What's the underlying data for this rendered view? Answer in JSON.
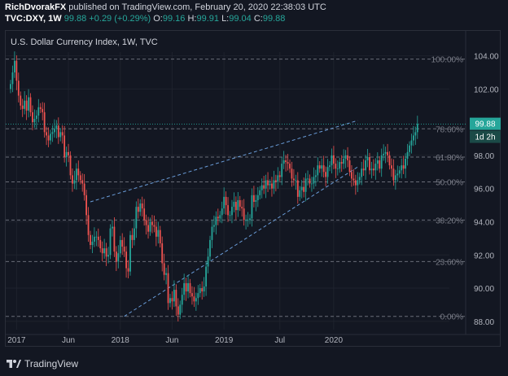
{
  "header": {
    "author": "RichDvorakFX",
    "published_text": "published on TradingView.com, February 20, 2020 22:38:03 UTC",
    "symbol": "TVC:DXY, 1W",
    "last": "99.88",
    "change": "+0.29 (+0.29%)",
    "o_label": "O:",
    "o_value": "99.16",
    "h_label": "H:",
    "h_value": "99.91",
    "l_label": "L:",
    "l_value": "99.04",
    "c_label": "C:",
    "c_value": "99.88"
  },
  "footer": {
    "brand": "TradingView"
  },
  "colors": {
    "up": "#26a69a",
    "down": "#ef5350",
    "fib": "#6a6d78",
    "channel": "#6a9cd8",
    "bg": "#131722"
  },
  "chart_data": {
    "type": "candlestick",
    "title": "U.S. Dollar Currency Index, 1W, TVC",
    "x_ticks": [
      "2017",
      "Jun",
      "2018",
      "Jun",
      "2019",
      "Jul",
      "2020"
    ],
    "y_ticks": [
      "104.00",
      "102.00",
      "98.00",
      "96.00",
      "94.00",
      "92.00",
      "90.00",
      "88.00"
    ],
    "ylim": [
      87.5,
      105.5
    ],
    "last_price_label": "99.88",
    "countdown_label": "1d 2h",
    "fib_levels": [
      {
        "label": "100.00%",
        "value": 103.8
      },
      {
        "label": "78.60%",
        "value": 99.6
      },
      {
        "label": "61.80%",
        "value": 97.9
      },
      {
        "label": "50.00%",
        "value": 96.4
      },
      {
        "label": "38.20%",
        "value": 94.1
      },
      {
        "label": "23.60%",
        "value": 91.6
      },
      {
        "label": "0.00%",
        "value": 88.3
      }
    ],
    "channel_upper": [
      [
        40,
        95.2
      ],
      [
        174,
        100.1
      ]
    ],
    "channel_lower": [
      [
        57,
        88.3
      ],
      [
        174,
        97.3
      ]
    ],
    "weekly_close": [
      102.3,
      103.0,
      103.7,
      102.5,
      101.6,
      101.0,
      100.8,
      101.3,
      100.7,
      101.5,
      100.6,
      100.0,
      100.2,
      100.4,
      100.9,
      100.8,
      100.6,
      99.4,
      99.2,
      98.9,
      99.3,
      99.4,
      99.6,
      99.8,
      99.1,
      99.4,
      99.2,
      97.9,
      98.2,
      98.0,
      96.8,
      96.3,
      96.5,
      97.2,
      96.8,
      96.5,
      96.3,
      95.6,
      94.4,
      93.2,
      92.6,
      92.8,
      93.1,
      93.1,
      92.9,
      92.4,
      92.1,
      92.4,
      91.9,
      92.0,
      93.6,
      93.7,
      92.2,
      91.6,
      92.1,
      92.9,
      92.5,
      92.2,
      91.2,
      91.0,
      93.2,
      92.9,
      93.6,
      94.9,
      94.6,
      95.1,
      94.8,
      94.1,
      93.8,
      93.4,
      94.0,
      93.8,
      93.7,
      93.1,
      93.5,
      92.7,
      91.5,
      90.8,
      90.9,
      89.1,
      89.4,
      89.2,
      89.9,
      88.9,
      88.4,
      89.0,
      89.6,
      90.3,
      89.8,
      90.3,
      89.7,
      89.5,
      89.2,
      89.4,
      89.7,
      90.0,
      89.8,
      90.1,
      91.3,
      91.9,
      92.9,
      93.7,
      93.8,
      94.3,
      94.2,
      94.4,
      94.8,
      95.5,
      95.0,
      94.4,
      94.4,
      94.9,
      95.2,
      94.7,
      95.3,
      94.9,
      94.8,
      94.1,
      94.1,
      94.1,
      94.2,
      95.6,
      95.2,
      95.3,
      95.6,
      95.9,
      96.2,
      96.0,
      96.5,
      96.2,
      96.3,
      96.0,
      96.5,
      96.4,
      96.8,
      96.7,
      97.5,
      97.7,
      97.6,
      97.5,
      97.2,
      96.6,
      96.5,
      96.5,
      95.5,
      95.9,
      96.1,
      95.8,
      96.6,
      96.6,
      96.3,
      96.3,
      96.7,
      96.8,
      97.4,
      97.2,
      97.4,
      97.0,
      96.7,
      97.3,
      97.4,
      98.0,
      97.5,
      97.2,
      97.2,
      97.6,
      97.5,
      97.8,
      98.0,
      97.7,
      97.0,
      96.6,
      96.5,
      96.2,
      96.5,
      96.7,
      97.2,
      97.1,
      97.7,
      97.9,
      97.1,
      97.2,
      97.1,
      97.5,
      97.7,
      97.2,
      98.0,
      98.1,
      98.2,
      98.0,
      97.4,
      97.2,
      96.5,
      96.8,
      96.9,
      97.1,
      97.4,
      97.2,
      97.8,
      98.2,
      98.6,
      98.9,
      99.2,
      99.4,
      99.9
    ]
  }
}
